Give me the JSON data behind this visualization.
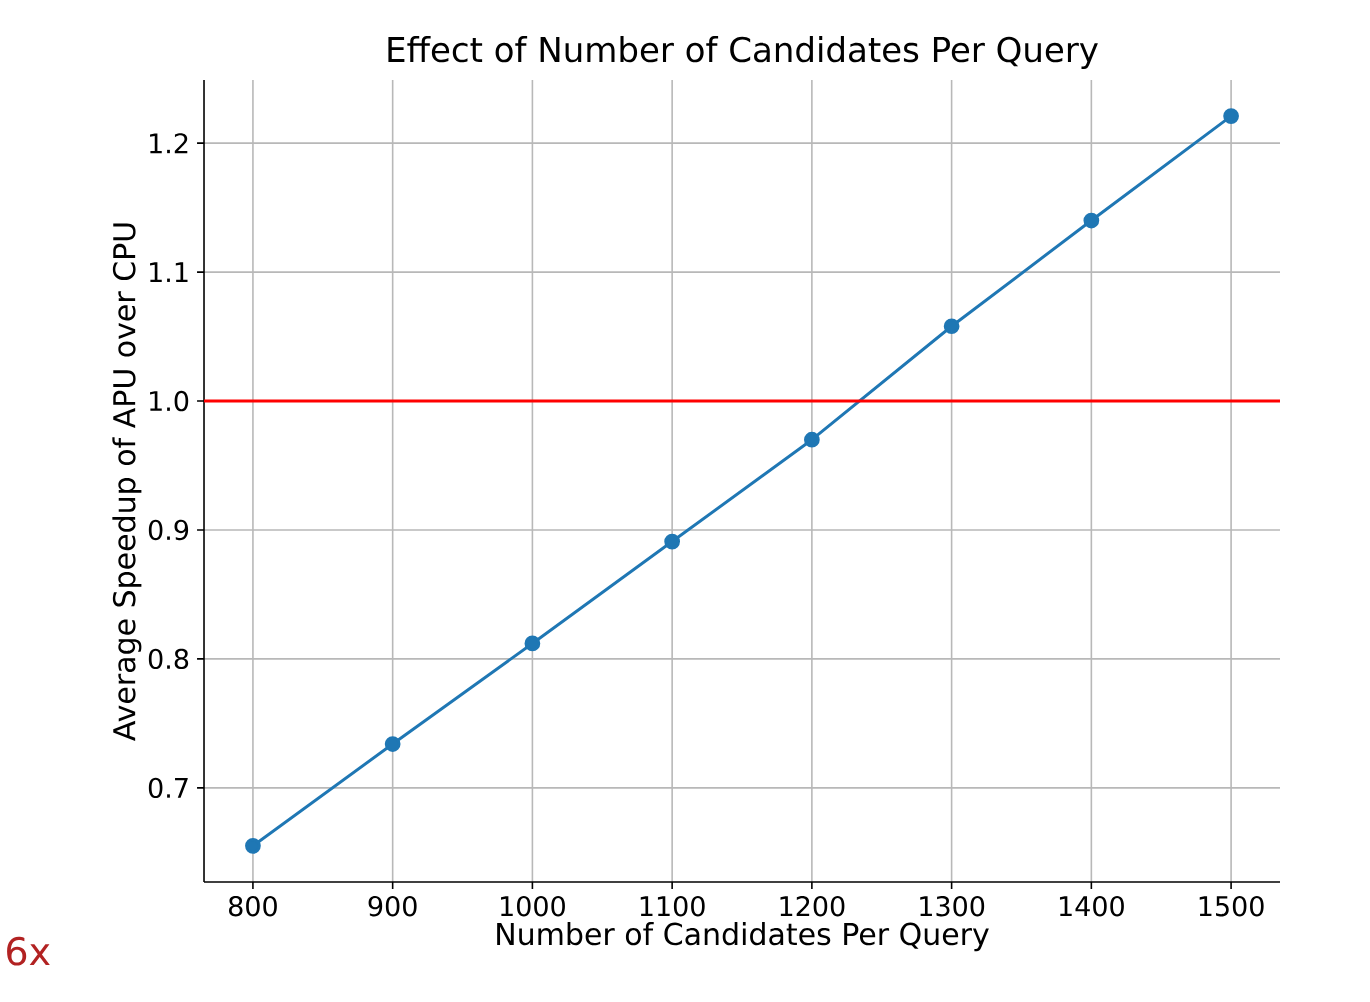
{
  "chart_data": {
    "type": "line",
    "title": "Effect of Number of Candidates Per Query",
    "xlabel": "Number of Candidates Per Query",
    "ylabel": "Average Speedup of APU over CPU",
    "x": [
      800,
      900,
      1000,
      1100,
      1200,
      1300,
      1400,
      1500
    ],
    "series": [
      {
        "color": "#1f77b4",
        "values": [
          0.655,
          0.734,
          0.812,
          0.891,
          0.97,
          1.058,
          1.14,
          1.221
        ]
      }
    ],
    "marker": "circle",
    "grid": true,
    "xlim": [
      765,
      1535
    ],
    "ylim": [
      0.627,
      1.249
    ],
    "xticks": [
      800,
      900,
      1000,
      1100,
      1200,
      1300,
      1400,
      1500
    ],
    "yticks": [
      0.7,
      0.8,
      0.9,
      {
        "value": 1.0,
        "label": "1.0"
      },
      1.1,
      1.2
    ],
    "ref_lines": [
      {
        "axis": "y",
        "value": 1.0,
        "color": "#ff0000"
      }
    ],
    "annotations": [
      "6x"
    ]
  }
}
